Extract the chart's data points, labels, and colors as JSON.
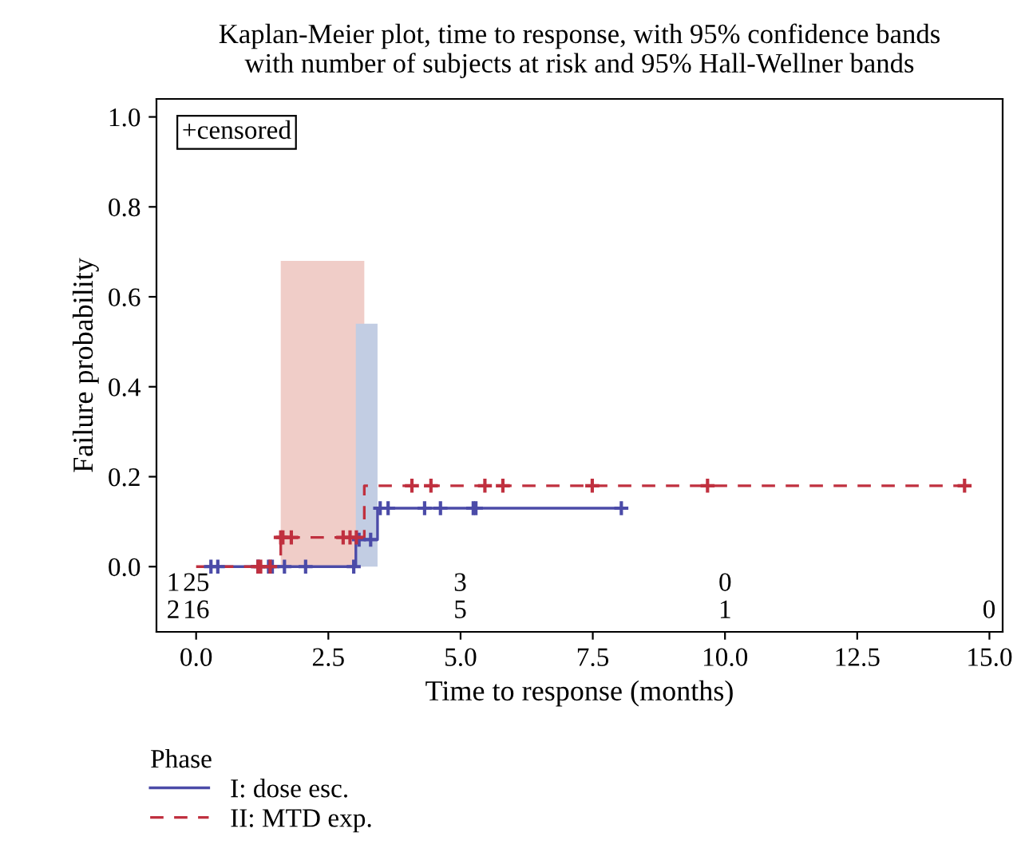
{
  "chart_data": {
    "type": "step",
    "title": "Kaplan-Meier plot, time to response, with 95% confidence bands\nwith number of subjects at risk and 95% Hall-Wellner bands",
    "xlabel": "Time to response (months)",
    "ylabel": "Failure probability",
    "legend_title": "Phase",
    "legend": "bottom left",
    "marker": "none",
    "grid": false,
    "xlim": [
      -0.75,
      15.25
    ],
    "ylim": [
      -0.145,
      1.04
    ],
    "xticks": [
      {
        "value": 0,
        "label": "0.0"
      },
      {
        "value": 2.5,
        "label": "2.5"
      },
      {
        "value": 5,
        "label": "5.0"
      },
      {
        "value": 7.5,
        "label": "7.5"
      },
      {
        "value": 10,
        "label": "10.0"
      },
      {
        "value": 12.5,
        "label": "12.5"
      },
      {
        "value": 15,
        "label": "15.0"
      }
    ],
    "yticks": [
      {
        "value": 0,
        "label": "0.0"
      },
      {
        "value": 0.2,
        "label": "0.2"
      },
      {
        "value": 0.4,
        "label": "0.4"
      },
      {
        "value": 0.6,
        "label": "0.6"
      },
      {
        "value": 0.8,
        "label": "0.8"
      },
      {
        "value": 1,
        "label": "1.0"
      }
    ],
    "series": [
      {
        "type": "area",
        "color": "#f0cdc8",
        "x": [
          1.6,
          3.18
        ],
        "values": [
          0.68,
          0.68
        ]
      },
      {
        "type": "area",
        "color": "#c2cde3",
        "x": [
          3.02,
          3.43
        ],
        "values": [
          0.54,
          0.54
        ]
      },
      {
        "name": "I: dose esc.",
        "color": "#4b4ba8",
        "line_style": "solid",
        "x": [
          0.2,
          3.02,
          3.43,
          8.06
        ],
        "values": [
          0,
          0.06,
          0.13,
          0.13
        ]
      },
      {
        "name": "II: MTD exp.",
        "color": "#c0303f",
        "line_style": "dashed",
        "x": [
          0,
          1.6,
          3.18,
          14.7
        ],
        "values": [
          0,
          0.065,
          0.18,
          0.18
        ]
      },
      {
        "type": "scatter",
        "marker": "cross",
        "color": "#4b4ba8",
        "x": [
          0.28,
          0.41,
          1.17,
          1.37,
          1.44,
          1.67,
          2.07,
          2.98,
          3.08,
          3.3,
          3.48,
          3.63,
          4.32,
          4.62,
          5.24,
          5.29,
          8.04
        ],
        "values": [
          0,
          0,
          0,
          0,
          0,
          0,
          0,
          0,
          0.06,
          0.06,
          0.13,
          0.13,
          0.13,
          0.13,
          0.13,
          0.13,
          0.13
        ]
      },
      {
        "type": "scatter",
        "marker": "cross",
        "color": "#c0303f",
        "x": [
          1.17,
          1.22,
          1.4,
          1.6,
          1.64,
          1.8,
          2.78,
          2.91,
          3.03,
          4.08,
          4.44,
          5.46,
          5.8,
          7.49,
          9.67,
          14.53
        ],
        "values": [
          0,
          0,
          0,
          0.065,
          0.065,
          0.065,
          0.065,
          0.065,
          0.065,
          0.18,
          0.18,
          0.18,
          0.18,
          0.18,
          0.18,
          0.18
        ]
      }
    ],
    "annotations": [
      "+censored",
      "1",
      "2",
      "25",
      "3",
      "0",
      "16",
      "5",
      "1",
      "0"
    ]
  }
}
